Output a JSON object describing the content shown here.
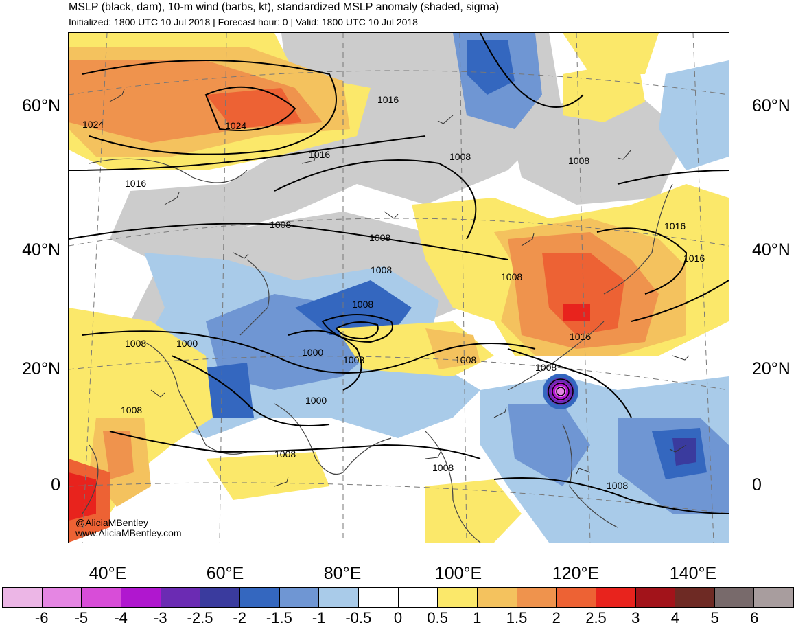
{
  "header": {
    "title": "MSLP (black, dam), 10-m wind (barbs, kt), standardized MSLP anomaly (shaded, sigma)",
    "subtitle": "Initialized: 1800 UTC 10 Jul 2018 | Forecast hour: 0 | Valid: 1800 UTC 10 Jul 2018"
  },
  "map": {
    "latitude_labels": [
      "60°N",
      "40°N",
      "20°N",
      "0"
    ],
    "longitude_labels": [
      "40°E",
      "60°E",
      "80°E",
      "100°E",
      "120°E",
      "140°E"
    ],
    "isobar_labels": [
      "1024",
      "1024",
      "1016",
      "1016",
      "1016",
      "1008",
      "1008",
      "1008",
      "1008",
      "1008",
      "1000",
      "1008",
      "1000",
      "1008",
      "1000",
      "1008",
      "1008",
      "1008",
      "1008",
      "1016",
      "1016",
      "1016",
      "1008",
      "1008",
      "1008",
      "1008"
    ],
    "credits": [
      "@AliciaMBentley",
      "www.AliciaMBentley.com"
    ],
    "icons": [
      "wind-barb-icon",
      "typhoon-low-icon"
    ]
  },
  "colorbar": {
    "labels": [
      "-6",
      "-5",
      "-4",
      "-3",
      "-2.5",
      "-2",
      "-1.5",
      "-1",
      "-0.5",
      "0",
      "0.5",
      "1",
      "1.5",
      "2",
      "2.5",
      "3",
      "4",
      "5",
      "6"
    ],
    "colors": [
      "#ecb6e6",
      "#e586e3",
      "#d84dd8",
      "#b017cf",
      "#6b2bb3",
      "#3a3b9e",
      "#3467bf",
      "#6f96d3",
      "#a9cbe9",
      "#ffffff",
      "#ffffff",
      "#fbe86a",
      "#f4c25e",
      "#ef934d",
      "#ed6234",
      "#e8231d",
      "#a2131a",
      "#6e2a24",
      "#786a6b",
      "#a89d9e"
    ]
  }
}
